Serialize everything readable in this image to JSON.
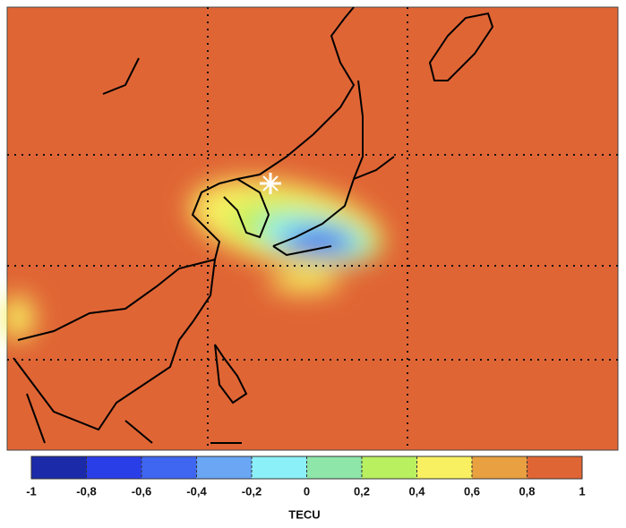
{
  "colorbar": {
    "lim": [
      -1,
      1
    ],
    "ticks": [
      -1,
      {
        "value": -0.8,
        "label": "-0,8"
      },
      {
        "value": -0.6,
        "label": "-0,6"
      },
      {
        "value": -0.4,
        "label": "-0,4"
      },
      {
        "value": -0.2,
        "label": "-0,2"
      },
      0,
      {
        "value": 0.2,
        "label": "0,2"
      },
      {
        "value": 0.4,
        "label": "0,4"
      },
      {
        "value": 0.6,
        "label": "0,6"
      },
      {
        "value": 0.8,
        "label": "0,8"
      },
      1
    ],
    "colors": [
      "#1a2aa8",
      "#2a3ee8",
      "#3f66f0",
      "#6aa6f4",
      "#8cf0f8",
      "#8ee6a8",
      "#b8f060",
      "#f8f060",
      "#e8a040",
      "#e06535"
    ],
    "label": "TECU"
  }
}
